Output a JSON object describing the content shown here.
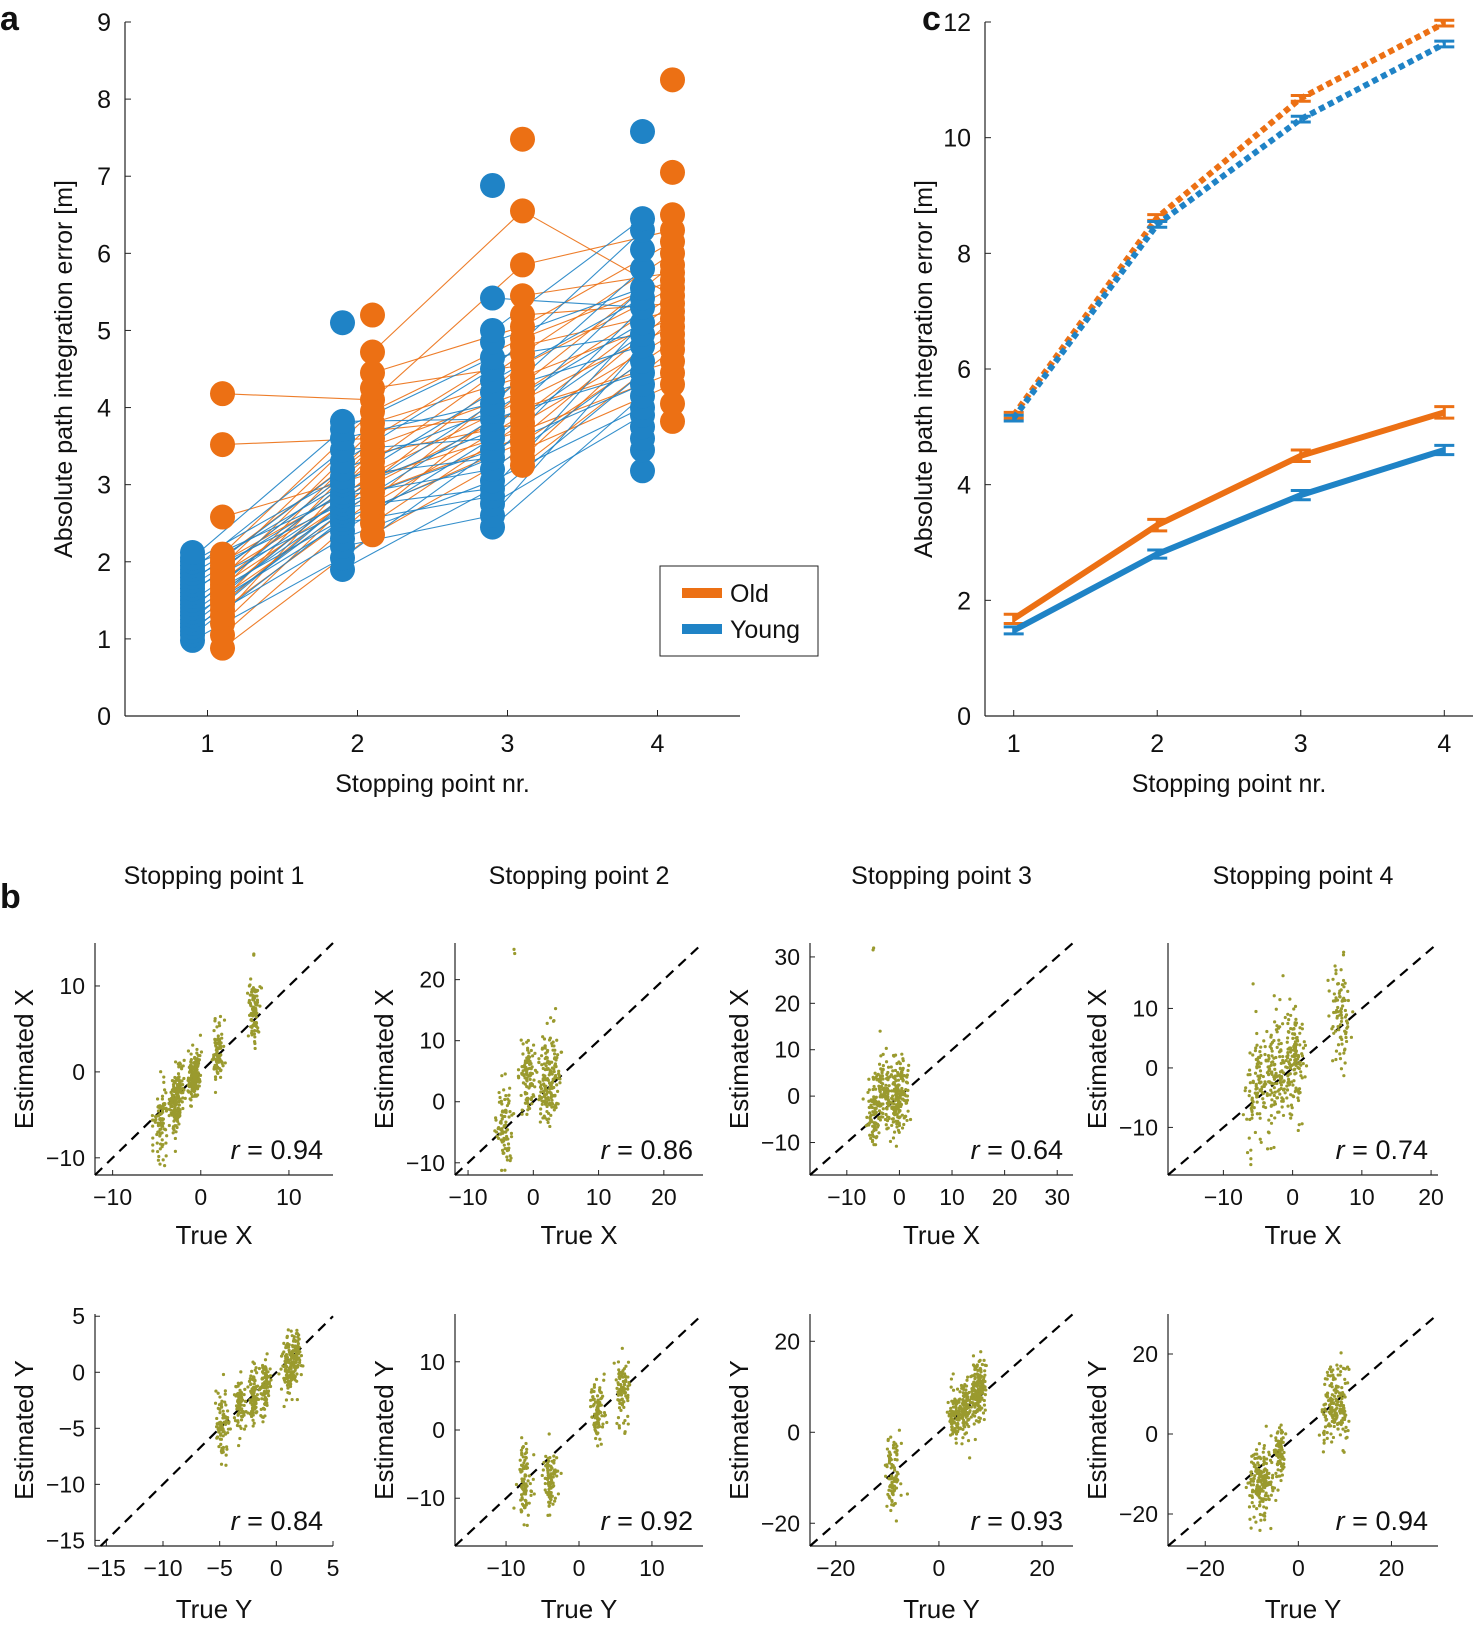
{
  "panel_labels": {
    "a": "a",
    "b": "b",
    "c": "c"
  },
  "colors": {
    "old": "#ec7014",
    "young": "#1f83c6",
    "scatter": "#9a9a2e",
    "diag": "#000000"
  },
  "chart_data": [
    {
      "id": "a",
      "type": "scatter",
      "title": "",
      "xlabel": "Stopping point nr.",
      "ylabel": "Absolute path integration error [m]",
      "xlim": [
        0.45,
        4.55
      ],
      "ylim": [
        0,
        9
      ],
      "xticks": [
        1,
        2,
        3,
        4
      ],
      "yticks": [
        0,
        1,
        2,
        3,
        4,
        5,
        6,
        7,
        8,
        9
      ],
      "legend": {
        "position": "right",
        "entries": [
          "Old",
          "Young"
        ]
      },
      "series": [
        {
          "name": "Old",
          "x_offset": 0.1,
          "values": [
            [
              0.88,
              1.05,
              1.2,
              1.3,
              1.38,
              1.45,
              1.5,
              1.55,
              1.6,
              1.65,
              1.7,
              1.75,
              1.8,
              1.85,
              1.9,
              1.95,
              2.0,
              2.05,
              2.1,
              2.58,
              3.52,
              4.18
            ],
            [
              2.35,
              2.5,
              2.6,
              2.7,
              2.75,
              2.8,
              2.9,
              3.0,
              3.05,
              3.1,
              3.15,
              3.2,
              3.3,
              3.4,
              3.5,
              3.6,
              3.7,
              3.8,
              3.95,
              4.1,
              4.25,
              4.45,
              4.72,
              5.2
            ],
            [
              3.25,
              3.35,
              3.45,
              3.55,
              3.62,
              3.7,
              3.8,
              3.9,
              4.0,
              4.1,
              4.2,
              4.3,
              4.4,
              4.55,
              4.7,
              4.8,
              4.9,
              5.05,
              5.2,
              5.45,
              5.85,
              6.55,
              7.48
            ],
            [
              3.82,
              4.05,
              4.3,
              4.45,
              4.6,
              4.75,
              4.85,
              4.95,
              5.05,
              5.15,
              5.25,
              5.35,
              5.45,
              5.55,
              5.65,
              5.75,
              5.85,
              6.0,
              6.15,
              6.3,
              6.5,
              7.05,
              8.25
            ]
          ]
        },
        {
          "name": "Young",
          "x_offset": -0.1,
          "values": [
            [
              0.98,
              1.05,
              1.1,
              1.15,
              1.2,
              1.25,
              1.3,
              1.35,
              1.4,
              1.45,
              1.5,
              1.55,
              1.6,
              1.65,
              1.7,
              1.75,
              1.8,
              1.85,
              1.9,
              1.95,
              2.0,
              2.05,
              2.12
            ],
            [
              1.9,
              2.05,
              2.2,
              2.3,
              2.4,
              2.5,
              2.55,
              2.6,
              2.65,
              2.7,
              2.75,
              2.8,
              2.85,
              2.9,
              3.0,
              3.05,
              3.1,
              3.2,
              3.3,
              3.45,
              3.6,
              3.72,
              3.82,
              5.1
            ],
            [
              2.45,
              2.6,
              2.75,
              2.85,
              2.95,
              3.05,
              3.2,
              3.35,
              3.45,
              3.6,
              3.7,
              3.85,
              3.95,
              4.05,
              4.2,
              4.35,
              4.5,
              4.65,
              4.85,
              5.0,
              5.42,
              6.88
            ],
            [
              3.18,
              3.45,
              3.6,
              3.75,
              3.9,
              4.0,
              4.15,
              4.3,
              4.45,
              4.6,
              4.8,
              4.95,
              5.1,
              5.3,
              5.42,
              5.55,
              5.8,
              6.05,
              6.3,
              6.45,
              7.58
            ]
          ]
        }
      ]
    },
    {
      "id": "c",
      "type": "line",
      "title": "",
      "xlabel": "Stopping point nr.",
      "ylabel": "Absolute path integration error [m]",
      "xlim": [
        0.8,
        4.2
      ],
      "ylim": [
        0,
        12
      ],
      "x": [
        1,
        2,
        3,
        4
      ],
      "xticks": [
        1,
        2,
        3,
        4
      ],
      "yticks": [
        0,
        2,
        4,
        6,
        8,
        10,
        12
      ],
      "series": [
        {
          "name": "Old",
          "style": "solid",
          "values": [
            1.68,
            3.3,
            4.5,
            5.25
          ],
          "errors": [
            0.08,
            0.1,
            0.1,
            0.1
          ]
        },
        {
          "name": "Young",
          "style": "solid",
          "values": [
            1.48,
            2.8,
            3.82,
            4.6
          ],
          "errors": [
            0.06,
            0.07,
            0.08,
            0.08
          ]
        },
        {
          "name": "Old",
          "style": "dotted",
          "values": [
            5.2,
            8.62,
            10.68,
            11.98
          ],
          "errors": [
            0.05,
            0.05,
            0.05,
            0.05
          ]
        },
        {
          "name": "Young",
          "style": "dotted",
          "values": [
            5.15,
            8.5,
            10.32,
            11.62
          ],
          "errors": [
            0.05,
            0.05,
            0.05,
            0.05
          ]
        }
      ]
    },
    {
      "id": "b",
      "type": "scatter",
      "subplots": [
        {
          "title": "Stopping point 1",
          "xlabel": "True X",
          "ylabel": "Estimated X",
          "r_prefix": "r",
          "r_text": " = 0.94",
          "xlim": [
            -12,
            15
          ],
          "ylim": [
            -12,
            15
          ],
          "xticks": [
            -10,
            0,
            10
          ],
          "yticks": [
            -10,
            0,
            10
          ],
          "clusters": [
            [
              -4.5,
              -5.5,
              2.6
            ],
            [
              -3,
              -4,
              1.4
            ],
            [
              -2.5,
              -2,
              1.6
            ],
            [
              -1,
              -1,
              1.3
            ],
            [
              -0.5,
              0,
              1.3
            ],
            [
              2,
              2,
              1.6
            ],
            [
              6,
              7,
              1.8
            ],
            [
              6,
              14,
              0.3
            ]
          ]
        },
        {
          "title": "Stopping point 2",
          "xlabel": "True X",
          "ylabel": "Estimated X",
          "r_prefix": "r",
          "r_text": " = 0.86",
          "xlim": [
            -12,
            26
          ],
          "ylim": [
            -12,
            26
          ],
          "xticks": [
            -10,
            0,
            10,
            20
          ],
          "yticks": [
            -10,
            0,
            10,
            20
          ],
          "clusters": [
            [
              -4.5,
              -4,
              3.5
            ],
            [
              -1,
              4,
              3
            ],
            [
              1.5,
              3,
              3.5
            ],
            [
              3,
              5,
              3.5
            ],
            [
              -3,
              25,
              0.3
            ]
          ]
        },
        {
          "title": "Stopping point 3",
          "xlabel": "True X",
          "ylabel": "Estimated X",
          "r_prefix": "r",
          "r_text": " = 0.64",
          "xlim": [
            -17,
            33
          ],
          "ylim": [
            -17,
            33
          ],
          "xticks": [
            -10,
            0,
            10,
            20,
            30
          ],
          "yticks": [
            -10,
            0,
            10,
            20,
            30
          ],
          "clusters": [
            [
              -5,
              -3,
              4
            ],
            [
              -3,
              0,
              4
            ],
            [
              -1,
              0,
              4
            ],
            [
              0.5,
              1,
              4
            ],
            [
              -5,
              32,
              0.3
            ]
          ]
        },
        {
          "title": "Stopping point 4",
          "xlabel": "True X",
          "ylabel": "Estimated X",
          "r_prefix": "r",
          "r_text": " = 0.74",
          "xlim": [
            -18,
            21
          ],
          "ylim": [
            -18,
            21
          ],
          "xticks": [
            -10,
            0,
            10,
            20
          ],
          "yticks": [
            -10,
            0,
            10
          ],
          "clusters": [
            [
              -5,
              -3,
              5
            ],
            [
              -3,
              -1,
              5
            ],
            [
              -1,
              1,
              5
            ],
            [
              0.5,
              2,
              4
            ],
            [
              7,
              9,
              4
            ],
            [
              -6,
              -15,
              0.5
            ]
          ]
        },
        {
          "title": "",
          "xlabel": "True Y",
          "ylabel": "Estimated Y",
          "r_prefix": "r",
          "r_text": " = 0.84",
          "xlim": [
            -16,
            5
          ],
          "ylim": [
            -15.5,
            5.2
          ],
          "xticks": [
            -15,
            -10,
            -5,
            0,
            5
          ],
          "yticks": [
            -15,
            -10,
            -5,
            0,
            5
          ],
          "clusters": [
            [
              -4.8,
              -4.5,
              1.5
            ],
            [
              -3.2,
              -3,
              1.2
            ],
            [
              -2,
              -2,
              1.2
            ],
            [
              -1,
              -1.5,
              1.2
            ],
            [
              1,
              0.5,
              1.4
            ],
            [
              1.7,
              1.5,
              1.3
            ]
          ]
        },
        {
          "title": "",
          "xlabel": "True Y",
          "ylabel": "Estimated Y",
          "r_prefix": "r",
          "r_text": " = 0.92",
          "xlim": [
            -17,
            17
          ],
          "ylim": [
            -17,
            17
          ],
          "xticks": [
            -10,
            0,
            10
          ],
          "yticks": [
            -10,
            0,
            10
          ],
          "clusters": [
            [
              -7.5,
              -7,
              2.5
            ],
            [
              -4,
              -7,
              2.5
            ],
            [
              2.5,
              3,
              2.5
            ],
            [
              6,
              6,
              2.5
            ]
          ]
        },
        {
          "title": "",
          "xlabel": "True Y",
          "ylabel": "Estimated Y",
          "r_prefix": "r",
          "r_text": " = 0.93",
          "xlim": [
            -25,
            26
          ],
          "ylim": [
            -25,
            26
          ],
          "xticks": [
            -20,
            0,
            20
          ],
          "yticks": [
            -20,
            0,
            20
          ],
          "clusters": [
            [
              -9,
              -10,
              4
            ],
            [
              3,
              4,
              3
            ],
            [
              5,
              5,
              3
            ],
            [
              7,
              8,
              3.5
            ],
            [
              8,
              10,
              3.5
            ]
          ]
        },
        {
          "title": "",
          "xlabel": "True Y",
          "ylabel": "Estimated Y",
          "r_prefix": "r",
          "r_text": " = 0.94",
          "xlim": [
            -28,
            30
          ],
          "ylim": [
            -28,
            30
          ],
          "xticks": [
            -20,
            0,
            20
          ],
          "yticks": [
            -20,
            0,
            20
          ],
          "clusters": [
            [
              -9,
              -12,
              5
            ],
            [
              -7,
              -12,
              5
            ],
            [
              -4,
              -5,
              3
            ],
            [
              7,
              7,
              5
            ],
            [
              9,
              8,
              5
            ]
          ]
        }
      ]
    }
  ]
}
